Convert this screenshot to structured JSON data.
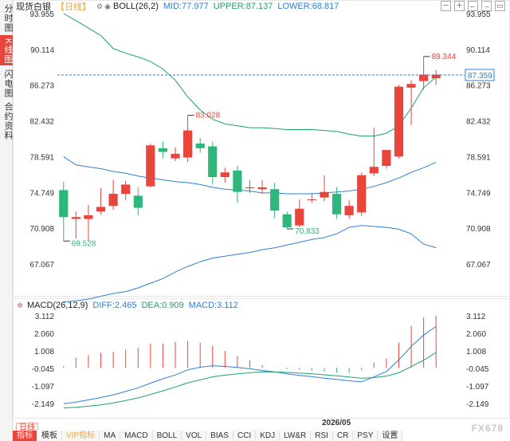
{
  "sidebar": {
    "tabs": [
      {
        "label": "分时图",
        "active": false
      },
      {
        "label": "K线图",
        "active": true
      },
      {
        "label": "闪电图",
        "active": false
      },
      {
        "label": "合约资料",
        "active": false
      }
    ]
  },
  "header": {
    "title": "现货白银",
    "period": "【日线】",
    "boll_label": "BOLL(26,2)",
    "mid": "MID:77.977",
    "upper": "UPPER:87.137",
    "lower": "LOWER:68.817"
  },
  "toolbar": {
    "buttons": [
      "－",
      "＋",
      "←",
      "→",
      "▭"
    ]
  },
  "price_axis": {
    "ticks": [
      "93.955",
      "90.114",
      "86.273",
      "82.432",
      "78.591",
      "74.749",
      "70.908",
      "67.067"
    ]
  },
  "current_price": "87.359",
  "annotations": {
    "high": "89.344",
    "mid_high": "83.028",
    "low1": "69.528",
    "low2": "70.833"
  },
  "macd": {
    "label": "MACD(26,12,9)",
    "diff": "DIFF:2.465",
    "dea": "DEA:0.909",
    "macd": "MACD:3.112",
    "ticks": [
      "3.112",
      "2.060",
      "1.008",
      "-0.045",
      "-1.097",
      "-2.149"
    ]
  },
  "date_label": "2026/05",
  "bottom": {
    "period_label": "日线",
    "tabs": [
      "指标",
      "模板",
      "VIP指标",
      "MA",
      "MACD",
      "BOLL",
      "VOL",
      "BIAS",
      "CCI",
      "KDJ",
      "LW&R",
      "RSI",
      "CR",
      "PSY",
      "设置"
    ]
  },
  "watermark": "FX678",
  "colors": {
    "up": "#e8453c",
    "down": "#2db77a",
    "mid": "#2f7fd6",
    "upper": "#1aa36b",
    "lower": "#2f7fd6"
  },
  "chart_data": [
    {
      "type": "candlestick",
      "ylim": [
        67.067,
        93.955
      ],
      "candles": [
        {
          "o": 75.0,
          "c": 72.1,
          "h": 75.9,
          "l": 69.528
        },
        {
          "o": 71.9,
          "c": 72.1,
          "h": 72.7,
          "l": 69.8
        },
        {
          "o": 71.9,
          "c": 72.3,
          "h": 73.4,
          "l": 69.5
        },
        {
          "o": 72.7,
          "c": 73.2,
          "h": 75.2,
          "l": 72.4
        },
        {
          "o": 73.3,
          "c": 74.6,
          "h": 76.1,
          "l": 72.9
        },
        {
          "o": 74.6,
          "c": 75.6,
          "h": 76.0,
          "l": 73.9
        },
        {
          "o": 74.4,
          "c": 73.1,
          "h": 75.3,
          "l": 72.3
        },
        {
          "o": 75.4,
          "c": 79.8,
          "h": 80.0,
          "l": 75.3
        },
        {
          "o": 79.5,
          "c": 79.1,
          "h": 80.2,
          "l": 78.4
        },
        {
          "o": 78.4,
          "c": 78.9,
          "h": 79.6,
          "l": 78.1
        },
        {
          "o": 78.5,
          "c": 81.4,
          "h": 83.028,
          "l": 78.0
        },
        {
          "o": 80.0,
          "c": 79.5,
          "h": 80.6,
          "l": 79.0
        },
        {
          "o": 79.7,
          "c": 76.4,
          "h": 80.2,
          "l": 75.6
        },
        {
          "o": 76.4,
          "c": 76.9,
          "h": 77.4,
          "l": 75.8
        },
        {
          "o": 77.1,
          "c": 74.8,
          "h": 77.6,
          "l": 73.6
        },
        {
          "o": 75.2,
          "c": 75.3,
          "h": 76.1,
          "l": 74.7
        },
        {
          "o": 75.1,
          "c": 75.3,
          "h": 76.1,
          "l": 74.6
        },
        {
          "o": 75.1,
          "c": 72.8,
          "h": 75.8,
          "l": 72.0
        },
        {
          "o": 72.4,
          "c": 71.0,
          "h": 72.7,
          "l": 70.833
        },
        {
          "o": 71.2,
          "c": 73.0,
          "h": 74.0,
          "l": 71.0
        },
        {
          "o": 74.0,
          "c": 74.0,
          "h": 74.7,
          "l": 73.6
        },
        {
          "o": 74.2,
          "c": 74.8,
          "h": 76.6,
          "l": 73.8
        },
        {
          "o": 74.6,
          "c": 72.4,
          "h": 75.3,
          "l": 71.9
        },
        {
          "o": 72.3,
          "c": 73.3,
          "h": 73.9,
          "l": 71.9
        },
        {
          "o": 72.6,
          "c": 76.6,
          "h": 76.9,
          "l": 72.2
        },
        {
          "o": 76.8,
          "c": 77.5,
          "h": 81.7,
          "l": 76.5
        },
        {
          "o": 77.6,
          "c": 79.3,
          "h": 79.3,
          "l": 77.3
        },
        {
          "o": 78.6,
          "c": 86.1,
          "h": 86.3,
          "l": 78.4
        },
        {
          "o": 86.0,
          "c": 86.4,
          "h": 86.8,
          "l": 82.0
        },
        {
          "o": 86.7,
          "c": 87.4,
          "h": 89.344,
          "l": 85.8
        },
        {
          "o": 87.0,
          "c": 87.4,
          "h": 87.9,
          "l": 86.3
        }
      ],
      "boll_mid": [
        78.591,
        77.7,
        77.5,
        77.3,
        77.0,
        76.8,
        76.5,
        76.3,
        76.1,
        75.9,
        75.8,
        75.6,
        75.3,
        75.1,
        75.0,
        74.9,
        74.7,
        74.7,
        74.6,
        74.6,
        74.6,
        74.7,
        74.8,
        74.9,
        75.1,
        75.4,
        75.8,
        76.3,
        76.9,
        77.4,
        77.977
      ],
      "boll_upper": [
        93.955,
        93.2,
        92.4,
        91.6,
        90.2,
        89.7,
        89.3,
        88.8,
        88.0,
        86.8,
        85.0,
        83.6,
        82.6,
        82.1,
        81.9,
        81.7,
        81.7,
        81.6,
        81.5,
        81.5,
        81.5,
        81.4,
        81.3,
        81.0,
        80.8,
        80.8,
        81.1,
        81.9,
        83.8,
        86.0,
        87.137
      ],
      "boll_lower": [
        63.0,
        63.1,
        63.3,
        63.6,
        63.9,
        64.1,
        64.5,
        65.0,
        65.5,
        66.2,
        66.8,
        67.3,
        67.7,
        67.9,
        68.1,
        68.3,
        68.6,
        68.8,
        69.1,
        69.4,
        69.7,
        69.9,
        70.3,
        71.0,
        71.2,
        71.1,
        71.0,
        70.8,
        70.3,
        69.2,
        68.817
      ]
    },
    {
      "type": "macd",
      "ylim": [
        -2.9,
        3.2
      ],
      "diff": [
        -2.149,
        -2.05,
        -1.92,
        -1.78,
        -1.62,
        -1.42,
        -1.2,
        -0.92,
        -0.66,
        -0.43,
        -0.12,
        0.03,
        0.12,
        0.08,
        0.02,
        -0.06,
        -0.16,
        -0.24,
        -0.36,
        -0.46,
        -0.53,
        -0.62,
        -0.7,
        -0.78,
        -0.84,
        -0.55,
        -0.22,
        0.46,
        1.28,
        1.95,
        2.465
      ],
      "dea": [
        -2.4,
        -2.36,
        -2.3,
        -2.22,
        -2.1,
        -1.96,
        -1.8,
        -1.6,
        -1.38,
        -1.15,
        -0.9,
        -0.72,
        -0.54,
        -0.44,
        -0.36,
        -0.3,
        -0.24,
        -0.25,
        -0.28,
        -0.32,
        -0.36,
        -0.42,
        -0.48,
        -0.55,
        -0.62,
        -0.59,
        -0.5,
        -0.3,
        0.07,
        0.45,
        0.909
      ],
      "hist": [
        0.1,
        0.6,
        0.75,
        0.9,
        0.95,
        1.1,
        1.2,
        1.45,
        1.45,
        1.55,
        1.6,
        1.5,
        1.3,
        1.0,
        0.7,
        0.45,
        0.15,
        0.02,
        -0.08,
        -0.12,
        -0.2,
        -0.25,
        -0.3,
        -0.3,
        -0.15,
        0.3,
        0.55,
        1.5,
        2.5,
        3.0,
        3.112
      ]
    }
  ]
}
